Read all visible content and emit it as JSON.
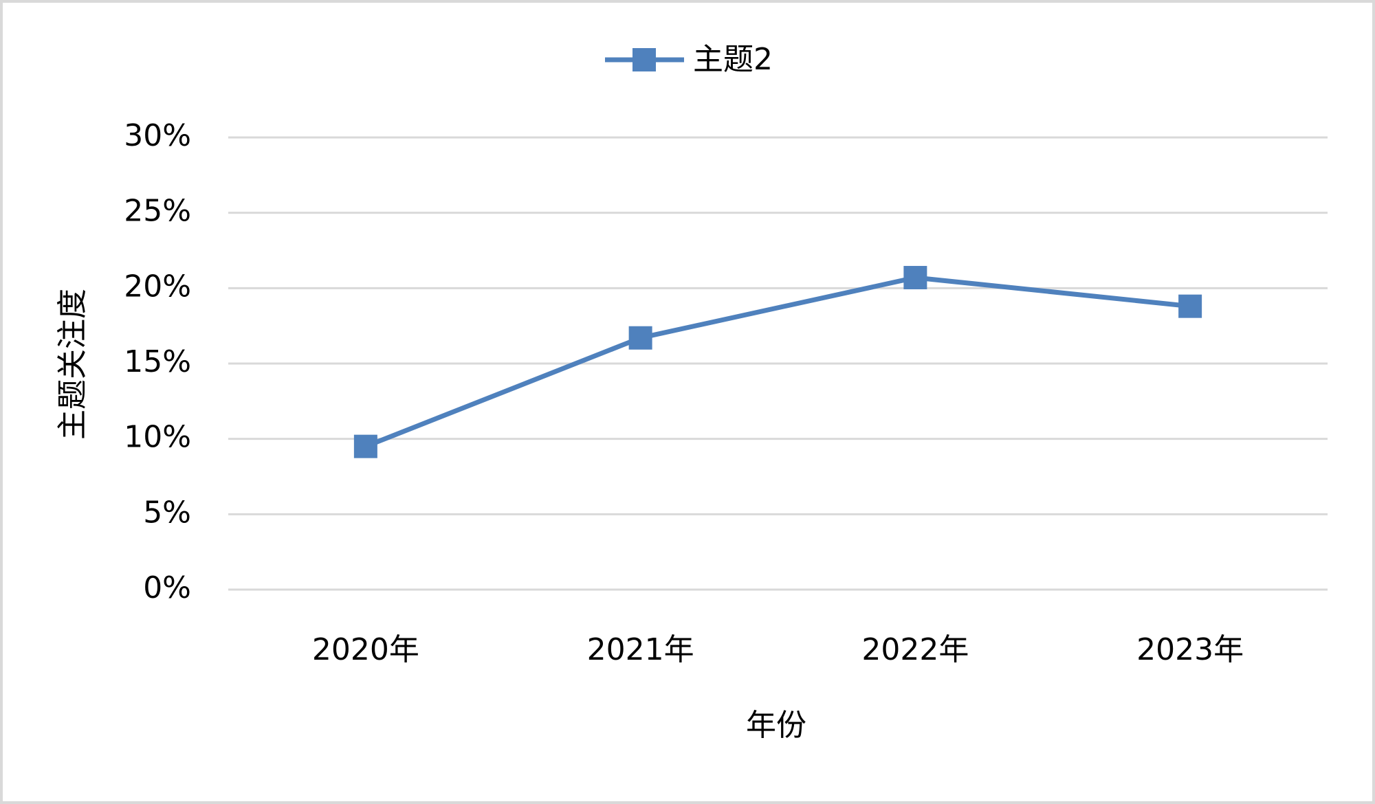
{
  "chart_data": {
    "type": "line",
    "x_label": "年份",
    "y_label": "主题关注度",
    "categories": [
      "2020年",
      "2021年",
      "2022年",
      "2023年"
    ],
    "series": [
      {
        "name": "主题2",
        "color": "#4f81bd",
        "values": [
          9.5,
          16.7,
          20.7,
          18.8
        ]
      }
    ],
    "ylim": [
      0,
      30
    ],
    "yticks": [
      {
        "value": 0,
        "label": "0%"
      },
      {
        "value": 5,
        "label": "5%"
      },
      {
        "value": 10,
        "label": "10%"
      },
      {
        "value": 15,
        "label": "15%"
      },
      {
        "value": 20,
        "label": "20%"
      },
      {
        "value": 25,
        "label": "25%"
      },
      {
        "value": 30,
        "label": "30%"
      }
    ],
    "grid": true,
    "legend": "top"
  }
}
